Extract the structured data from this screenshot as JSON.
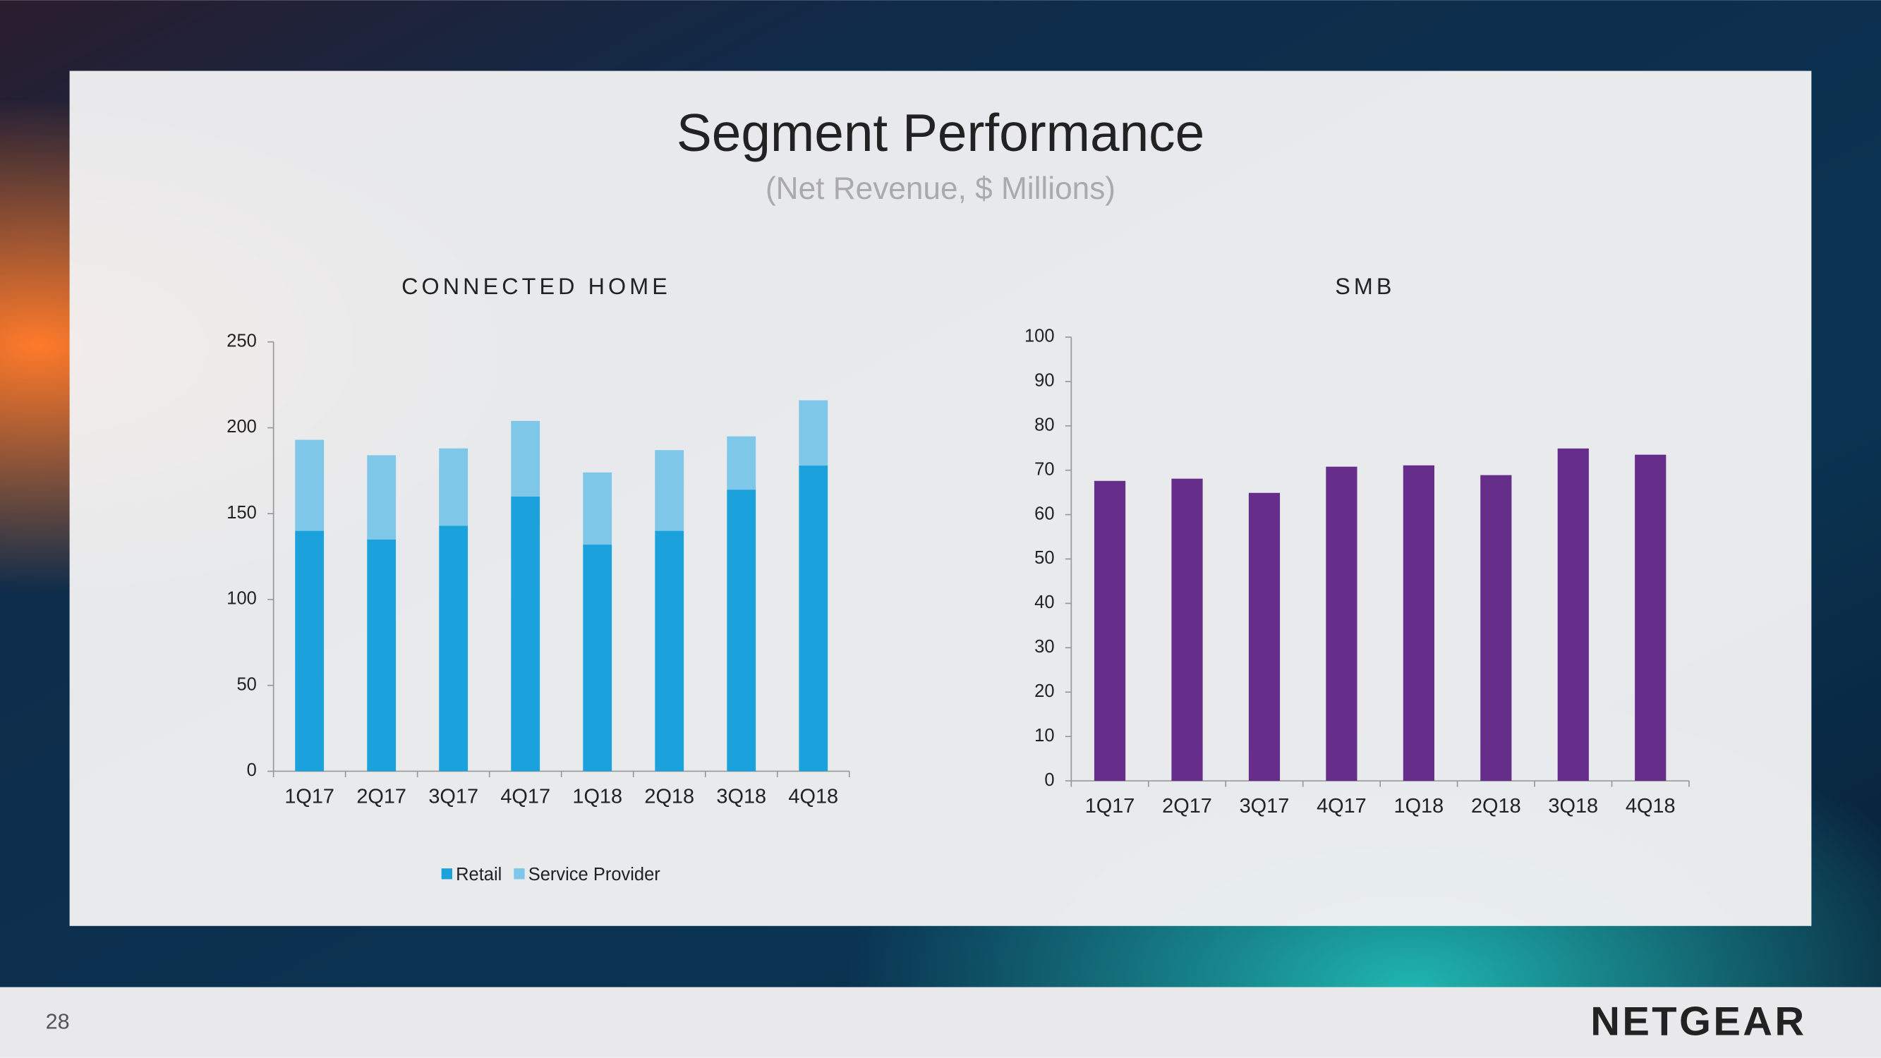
{
  "slide": {
    "title": "Segment Performance",
    "subtitle": "(Net Revenue, $ Millions)",
    "page_number": "28",
    "logo": "NETGEAR"
  },
  "chart_data": [
    {
      "type": "bar",
      "stacked": true,
      "title": "CONNECTED HOME",
      "categories": [
        "1Q17",
        "2Q17",
        "3Q17",
        "4Q17",
        "1Q18",
        "2Q18",
        "3Q18",
        "4Q18"
      ],
      "series": [
        {
          "name": "Retail",
          "color": "#1ba1dc",
          "values": [
            140,
            135,
            143,
            160,
            132,
            140,
            164,
            178
          ]
        },
        {
          "name": "Service Provider",
          "color": "#7fc7e8",
          "values": [
            53,
            49,
            45,
            44,
            42,
            47,
            31,
            38
          ]
        }
      ],
      "ylim": [
        0,
        250
      ],
      "yticks": [
        0,
        50,
        100,
        150,
        200,
        250
      ],
      "legend": "bottom"
    },
    {
      "type": "bar",
      "title": "SMB",
      "categories": [
        "1Q17",
        "2Q17",
        "3Q17",
        "4Q17",
        "1Q18",
        "2Q18",
        "3Q18",
        "4Q18"
      ],
      "series": [
        {
          "name": "SMB",
          "color": "#662d8a",
          "values": [
            67.6,
            68.1,
            64.9,
            70.8,
            71.1,
            68.9,
            74.9,
            73.5
          ]
        }
      ],
      "ylim": [
        0,
        100
      ],
      "yticks": [
        0,
        10,
        20,
        30,
        40,
        50,
        60,
        70,
        80,
        90,
        100
      ]
    }
  ]
}
